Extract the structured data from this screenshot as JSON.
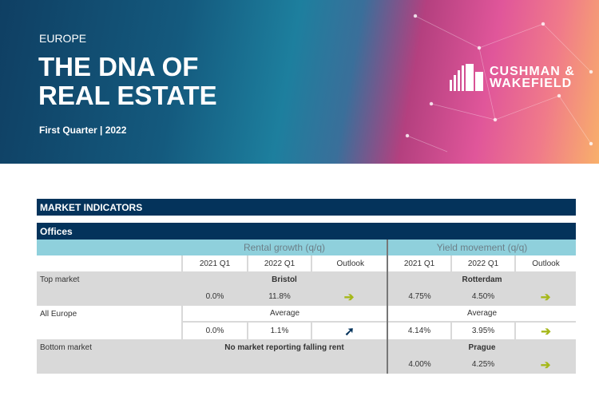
{
  "banner": {
    "eyebrow": "EUROPE",
    "title_line1": "THE DNA OF",
    "title_line2": "REAL ESTATE",
    "subtitle": "First Quarter | 2022",
    "logo_line1": "CUSHMAN &",
    "logo_line2": "WAKEFIELD"
  },
  "section_title": "MARKET INDICATORS",
  "table": {
    "title": "Offices",
    "group_headers": [
      "Rental growth (q/q)",
      "Yield movement (q/q)"
    ],
    "columns": [
      "2021 Q1",
      "2022 Q1",
      "Outlook",
      "2021 Q1",
      "2022 Q1",
      "Outlook"
    ],
    "rows": [
      {
        "label": "Top market",
        "rental_market": "Bristol",
        "yield_market": "Rotterdam",
        "rental_2021": "0.0%",
        "rental_2022": "11.8%",
        "rental_outlook": "arrow-right",
        "yield_2021": "4.75%",
        "yield_2022": "4.50%",
        "yield_outlook": "arrow-right"
      },
      {
        "label": "All Europe",
        "rental_market": "Average",
        "yield_market": "Average",
        "rental_2021": "0.0%",
        "rental_2022": "1.1%",
        "rental_outlook": "arrow-up-right",
        "yield_2021": "4.14%",
        "yield_2022": "3.95%",
        "yield_outlook": "arrow-right"
      },
      {
        "label": "Bottom market",
        "rental_market": "No market reporting falling rent",
        "yield_market": "Prague",
        "yield_2021": "4.00%",
        "yield_2022": "4.25%",
        "yield_outlook": "arrow-right"
      }
    ]
  },
  "colors": {
    "navy": "#04335b",
    "header_blue": "#8fd0dc",
    "row_gray": "#d9d9d9",
    "arrow_green": "#a6b81a"
  }
}
